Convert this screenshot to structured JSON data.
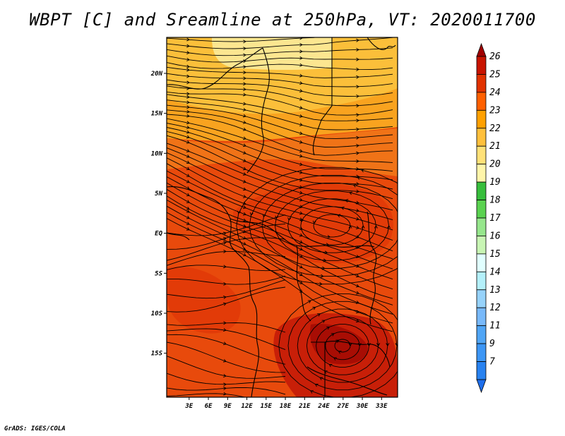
{
  "title": "WBPT [C] and Sreamline at 250hPa, VT: 2020011700",
  "footer": "GrADS: IGES/COLA",
  "map": {
    "lon_range": [
      -0.5,
      35.5
    ],
    "lat_range": [
      -20.5,
      24.5
    ],
    "lat_ticks": [
      {
        "value": 20,
        "label": "20N"
      },
      {
        "value": 15,
        "label": "15N"
      },
      {
        "value": 10,
        "label": "10N"
      },
      {
        "value": 5,
        "label": "5N"
      },
      {
        "value": 0,
        "label": "EQ"
      },
      {
        "value": -5,
        "label": "5S"
      },
      {
        "value": -10,
        "label": "10S"
      },
      {
        "value": -15,
        "label": "15S"
      }
    ],
    "lon_ticks": [
      {
        "value": 3,
        "label": "3E"
      },
      {
        "value": 6,
        "label": "6E"
      },
      {
        "value": 9,
        "label": "9E"
      },
      {
        "value": 12,
        "label": "12E"
      },
      {
        "value": 15,
        "label": "15E"
      },
      {
        "value": 18,
        "label": "18E"
      },
      {
        "value": 21,
        "label": "21E"
      },
      {
        "value": 24,
        "label": "24E"
      },
      {
        "value": 27,
        "label": "27E"
      },
      {
        "value": 30,
        "label": "30E"
      },
      {
        "value": 33,
        "label": "33E"
      }
    ]
  },
  "colorbar": {
    "levels": [
      "7",
      "9",
      "11",
      "12",
      "13",
      "14",
      "15",
      "16",
      "17",
      "18",
      "19",
      "20",
      "21",
      "22",
      "23",
      "24",
      "25",
      "26"
    ],
    "colors": [
      "#1e6eeb",
      "#2882f0",
      "#3c96f5",
      "#50a5f5",
      "#78b9fa",
      "#96d2fa",
      "#b4f0fa",
      "#e1ffff",
      "#c8f5b4",
      "#96e68c",
      "#5ad250",
      "#37be3c",
      "#fff5aa",
      "#ffe178",
      "#ffc03c",
      "#ffa000",
      "#ff6000",
      "#e13200",
      "#c81400",
      "#a00000"
    ]
  }
}
